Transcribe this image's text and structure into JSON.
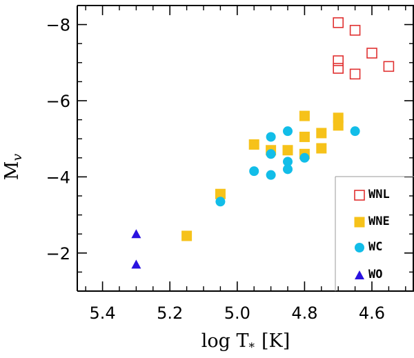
{
  "chart_data": {
    "type": "scatter",
    "title": "",
    "xlabel": "log T",
    "xlabel_sub": "*",
    "xlabel_unit": "[K]",
    "ylabel": "M",
    "ylabel_sub": "v",
    "xlim": [
      5.475,
      4.475
    ],
    "ylim": [
      -1.0,
      -8.5
    ],
    "x_inverted": true,
    "y_inverted": true,
    "xticks": [
      5.4,
      5.2,
      5.0,
      4.8,
      4.6
    ],
    "xtick_labels": [
      "5.4",
      "5.2",
      "5.0",
      "4.8",
      "4.6"
    ],
    "yticks": [
      -8,
      -6,
      -4,
      -2
    ],
    "ytick_labels": [
      "−8",
      "−6",
      "−4",
      "−2"
    ],
    "grid": false,
    "legend_position": "bottom-right",
    "series": [
      {
        "name": "WNL",
        "marker": "open-square",
        "color": "#e03030",
        "points": [
          {
            "x": 4.7,
            "y": -8.05
          },
          {
            "x": 4.65,
            "y": -7.85
          },
          {
            "x": 4.6,
            "y": -7.25
          },
          {
            "x": 4.55,
            "y": -6.9
          },
          {
            "x": 4.7,
            "y": -7.05
          },
          {
            "x": 4.7,
            "y": -6.85
          },
          {
            "x": 4.65,
            "y": -6.7
          }
        ]
      },
      {
        "name": "WNE",
        "marker": "filled-square",
        "color": "#f6c21a",
        "points": [
          {
            "x": 4.8,
            "y": -5.6
          },
          {
            "x": 4.7,
            "y": -5.55
          },
          {
            "x": 4.7,
            "y": -5.35
          },
          {
            "x": 4.75,
            "y": -5.15
          },
          {
            "x": 4.8,
            "y": -5.05
          },
          {
            "x": 4.95,
            "y": -4.85
          },
          {
            "x": 4.9,
            "y": -4.7
          },
          {
            "x": 4.85,
            "y": -4.7
          },
          {
            "x": 4.75,
            "y": -4.75
          },
          {
            "x": 4.8,
            "y": -4.6
          },
          {
            "x": 5.05,
            "y": -3.55
          },
          {
            "x": 5.15,
            "y": -2.45
          }
        ]
      },
      {
        "name": "WC",
        "marker": "filled-circle",
        "color": "#12bde8",
        "points": [
          {
            "x": 4.85,
            "y": -5.2
          },
          {
            "x": 4.65,
            "y": -5.2
          },
          {
            "x": 4.9,
            "y": -5.05
          },
          {
            "x": 4.9,
            "y": -4.6
          },
          {
            "x": 4.8,
            "y": -4.5
          },
          {
            "x": 4.85,
            "y": -4.4
          },
          {
            "x": 4.95,
            "y": -4.15
          },
          {
            "x": 4.85,
            "y": -4.2
          },
          {
            "x": 4.9,
            "y": -4.05
          },
          {
            "x": 5.05,
            "y": -3.35
          }
        ]
      },
      {
        "name": "WO",
        "marker": "filled-triangle",
        "color": "#2a12e0",
        "points": [
          {
            "x": 5.3,
            "y": -2.5
          },
          {
            "x": 5.3,
            "y": -1.7
          }
        ]
      }
    ]
  }
}
